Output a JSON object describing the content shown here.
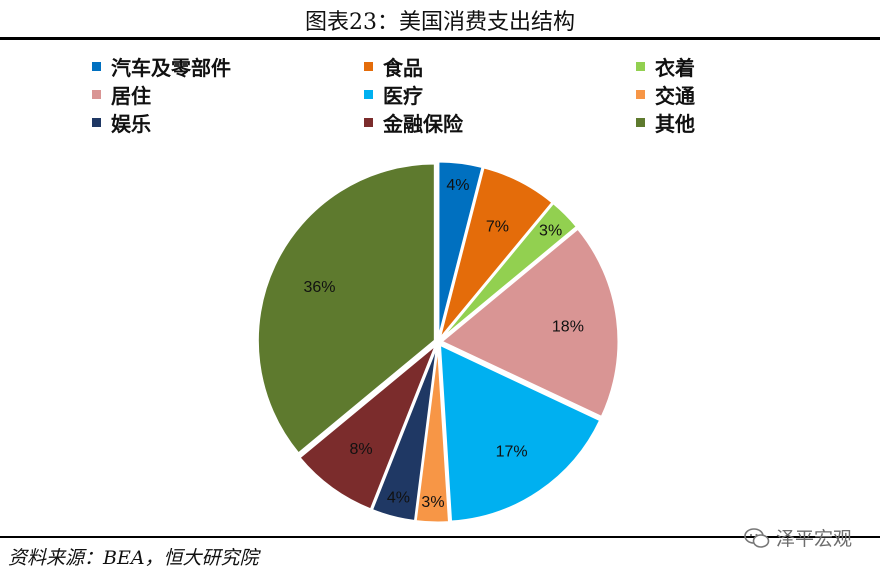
{
  "header": {
    "title": "图表23：美国消费支出结构"
  },
  "footer": {
    "source": "资料来源：BEA，恒大研究院",
    "watermark": "泽平宏观"
  },
  "icons": {
    "watermark": "wechat-icon"
  },
  "chart_data": {
    "type": "pie",
    "title": "图表23：美国消费支出结构",
    "legend_position": "top",
    "slices": [
      {
        "label": "汽车及零部件",
        "value": 4,
        "display": "4%",
        "color": "#0070C0"
      },
      {
        "label": "食品",
        "value": 7,
        "display": "7%",
        "color": "#E46C0A"
      },
      {
        "label": "衣着",
        "value": 3,
        "display": "3%",
        "color": "#92D050"
      },
      {
        "label": "居住",
        "value": 18,
        "display": "18%",
        "color": "#D99594"
      },
      {
        "label": "医疗",
        "value": 17,
        "display": "17%",
        "color": "#00B0F0"
      },
      {
        "label": "交通",
        "value": 3,
        "display": "3%",
        "color": "#F79646"
      },
      {
        "label": "娱乐",
        "value": 4,
        "display": "4%",
        "color": "#1F3864"
      },
      {
        "label": "金融保险",
        "value": 8,
        "display": "8%",
        "color": "#7B2C2C"
      },
      {
        "label": "其他",
        "value": 36,
        "display": "36%",
        "color": "#5E7A2E"
      }
    ]
  }
}
